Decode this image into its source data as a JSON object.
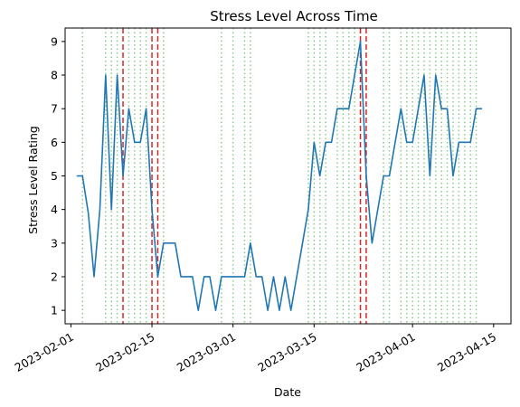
{
  "chart_data": {
    "type": "line",
    "title": "Stress Level Across Time",
    "xlabel": "Date",
    "ylabel": "Stress Level Rating",
    "x_axis": {
      "type": "date",
      "range": [
        "2023-01-31",
        "2023-04-18"
      ]
    },
    "y_axis": {
      "range": [
        0.6,
        9.4
      ]
    },
    "x_ticks": [
      {
        "date": "2023-02-01",
        "label": "2023-02-01"
      },
      {
        "date": "2023-02-15",
        "label": "2023-02-15"
      },
      {
        "date": "2023-03-01",
        "label": "2023-03-01"
      },
      {
        "date": "2023-03-15",
        "label": "2023-03-15"
      },
      {
        "date": "2023-04-01",
        "label": "2023-04-01"
      },
      {
        "date": "2023-04-15",
        "label": "2023-04-15"
      }
    ],
    "y_ticks": [
      1,
      2,
      3,
      4,
      5,
      6,
      7,
      8,
      9
    ],
    "series": [
      {
        "color": "#1f77b4",
        "points": [
          {
            "x": "2023-02-02",
            "y": 5
          },
          {
            "x": "2023-02-03",
            "y": 5
          },
          {
            "x": "2023-02-04",
            "y": 3.9
          },
          {
            "x": "2023-02-05",
            "y": 2
          },
          {
            "x": "2023-02-06",
            "y": 4
          },
          {
            "x": "2023-02-07",
            "y": 8
          },
          {
            "x": "2023-02-08",
            "y": 4
          },
          {
            "x": "2023-02-09",
            "y": 8
          },
          {
            "x": "2023-02-10",
            "y": 5
          },
          {
            "x": "2023-02-11",
            "y": 7
          },
          {
            "x": "2023-02-12",
            "y": 6
          },
          {
            "x": "2023-02-13",
            "y": 6
          },
          {
            "x": "2023-02-14",
            "y": 7
          },
          {
            "x": "2023-02-15",
            "y": 4
          },
          {
            "x": "2023-02-16",
            "y": 2
          },
          {
            "x": "2023-02-17",
            "y": 3
          },
          {
            "x": "2023-02-18",
            "y": 3
          },
          {
            "x": "2023-02-19",
            "y": 3
          },
          {
            "x": "2023-02-20",
            "y": 2
          },
          {
            "x": "2023-02-21",
            "y": 2
          },
          {
            "x": "2023-02-22",
            "y": 2
          },
          {
            "x": "2023-02-23",
            "y": 1
          },
          {
            "x": "2023-02-24",
            "y": 2
          },
          {
            "x": "2023-02-25",
            "y": 2
          },
          {
            "x": "2023-02-26",
            "y": 1
          },
          {
            "x": "2023-02-27",
            "y": 2
          },
          {
            "x": "2023-02-28",
            "y": 2
          },
          {
            "x": "2023-03-01",
            "y": 2
          },
          {
            "x": "2023-03-02",
            "y": 2
          },
          {
            "x": "2023-03-03",
            "y": 2
          },
          {
            "x": "2023-03-04",
            "y": 3
          },
          {
            "x": "2023-03-05",
            "y": 2
          },
          {
            "x": "2023-03-06",
            "y": 2
          },
          {
            "x": "2023-03-07",
            "y": 1
          },
          {
            "x": "2023-03-08",
            "y": 2
          },
          {
            "x": "2023-03-09",
            "y": 1
          },
          {
            "x": "2023-03-10",
            "y": 2
          },
          {
            "x": "2023-03-11",
            "y": 1
          },
          {
            "x": "2023-03-12",
            "y": 2
          },
          {
            "x": "2023-03-13",
            "y": 3
          },
          {
            "x": "2023-03-14",
            "y": 4
          },
          {
            "x": "2023-03-15",
            "y": 6
          },
          {
            "x": "2023-03-16",
            "y": 5
          },
          {
            "x": "2023-03-17",
            "y": 6
          },
          {
            "x": "2023-03-18",
            "y": 6
          },
          {
            "x": "2023-03-19",
            "y": 7
          },
          {
            "x": "2023-03-20",
            "y": 7
          },
          {
            "x": "2023-03-21",
            "y": 7
          },
          {
            "x": "2023-03-22",
            "y": 8
          },
          {
            "x": "2023-03-23",
            "y": 9
          },
          {
            "x": "2023-03-24",
            "y": 5
          },
          {
            "x": "2023-03-25",
            "y": 3
          },
          {
            "x": "2023-03-26",
            "y": 4
          },
          {
            "x": "2023-03-27",
            "y": 5
          },
          {
            "x": "2023-03-28",
            "y": 5
          },
          {
            "x": "2023-03-29",
            "y": 6
          },
          {
            "x": "2023-03-30",
            "y": 7
          },
          {
            "x": "2023-03-31",
            "y": 6
          },
          {
            "x": "2023-04-01",
            "y": 6
          },
          {
            "x": "2023-04-02",
            "y": 7
          },
          {
            "x": "2023-04-03",
            "y": 8
          },
          {
            "x": "2023-04-04",
            "y": 5
          },
          {
            "x": "2023-04-05",
            "y": 8
          },
          {
            "x": "2023-04-06",
            "y": 7
          },
          {
            "x": "2023-04-07",
            "y": 7
          },
          {
            "x": "2023-04-08",
            "y": 5
          },
          {
            "x": "2023-04-09",
            "y": 6
          },
          {
            "x": "2023-04-10",
            "y": 6
          },
          {
            "x": "2023-04-11",
            "y": 6
          },
          {
            "x": "2023-04-12",
            "y": 7
          },
          {
            "x": "2023-04-13",
            "y": 7
          }
        ]
      }
    ],
    "red_dashed_lines": {
      "color": "#d62728",
      "dates": [
        "2023-02-10",
        "2023-02-15",
        "2023-02-16",
        "2023-03-23",
        "2023-03-24"
      ]
    },
    "green_dotted_lines": {
      "color": "#2ca02c",
      "dates": [
        "2023-02-03",
        "2023-02-07",
        "2023-02-08",
        "2023-02-09",
        "2023-02-11",
        "2023-02-12",
        "2023-02-13",
        "2023-02-14",
        "2023-02-17",
        "2023-02-27",
        "2023-03-01",
        "2023-03-03",
        "2023-03-04",
        "2023-03-14",
        "2023-03-15",
        "2023-03-16",
        "2023-03-17",
        "2023-03-19",
        "2023-03-20",
        "2023-03-21",
        "2023-03-22",
        "2023-03-23",
        "2023-03-27",
        "2023-03-28",
        "2023-03-30",
        "2023-03-31",
        "2023-04-01",
        "2023-04-02",
        "2023-04-03",
        "2023-04-04",
        "2023-04-05",
        "2023-04-06",
        "2023-04-07",
        "2023-04-08",
        "2023-04-09",
        "2023-04-10",
        "2023-04-11",
        "2023-04-12"
      ]
    },
    "grid": false,
    "legend": "none"
  }
}
